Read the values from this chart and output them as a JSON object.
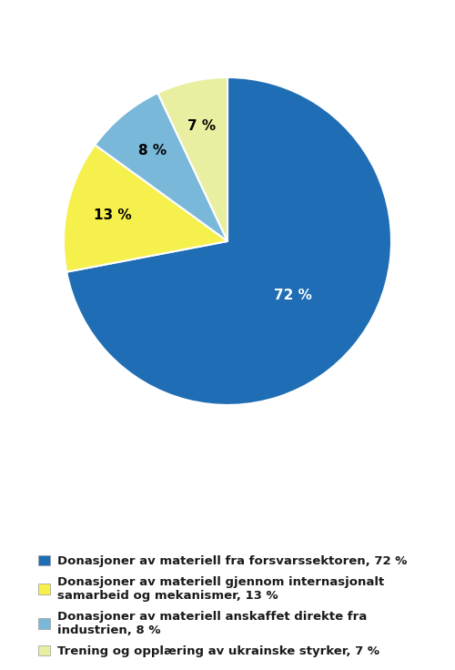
{
  "values": [
    72,
    13,
    8,
    7
  ],
  "colors": [
    "#1F6EB5",
    "#F5F04B",
    "#7AB8D9",
    "#E8EFA0"
  ],
  "labels": [
    "72 %",
    "13 %",
    "8 %",
    "7 %"
  ],
  "legend_entries": [
    "Donasjoner av materiell fra forsvarssektoren, 72 %",
    "Donasjoner av materiell gjennom internasjonalt\nsamarbeid og mekanismer, 13 %",
    "Donasjoner av materiell anskaffet direkte fra\nindustrien, 8 %",
    "Trening og opplæring av ukrainske styrker, 7 %"
  ],
  "legend_colors": [
    "#1F6EB5",
    "#F5F04B",
    "#7AB8D9",
    "#E8EFA0"
  ],
  "startangle": 90,
  "label_fontsize": 11,
  "legend_fontsize": 9.5,
  "background_color": "#ffffff",
  "label_colors": [
    "white",
    "black",
    "black",
    "black"
  ]
}
